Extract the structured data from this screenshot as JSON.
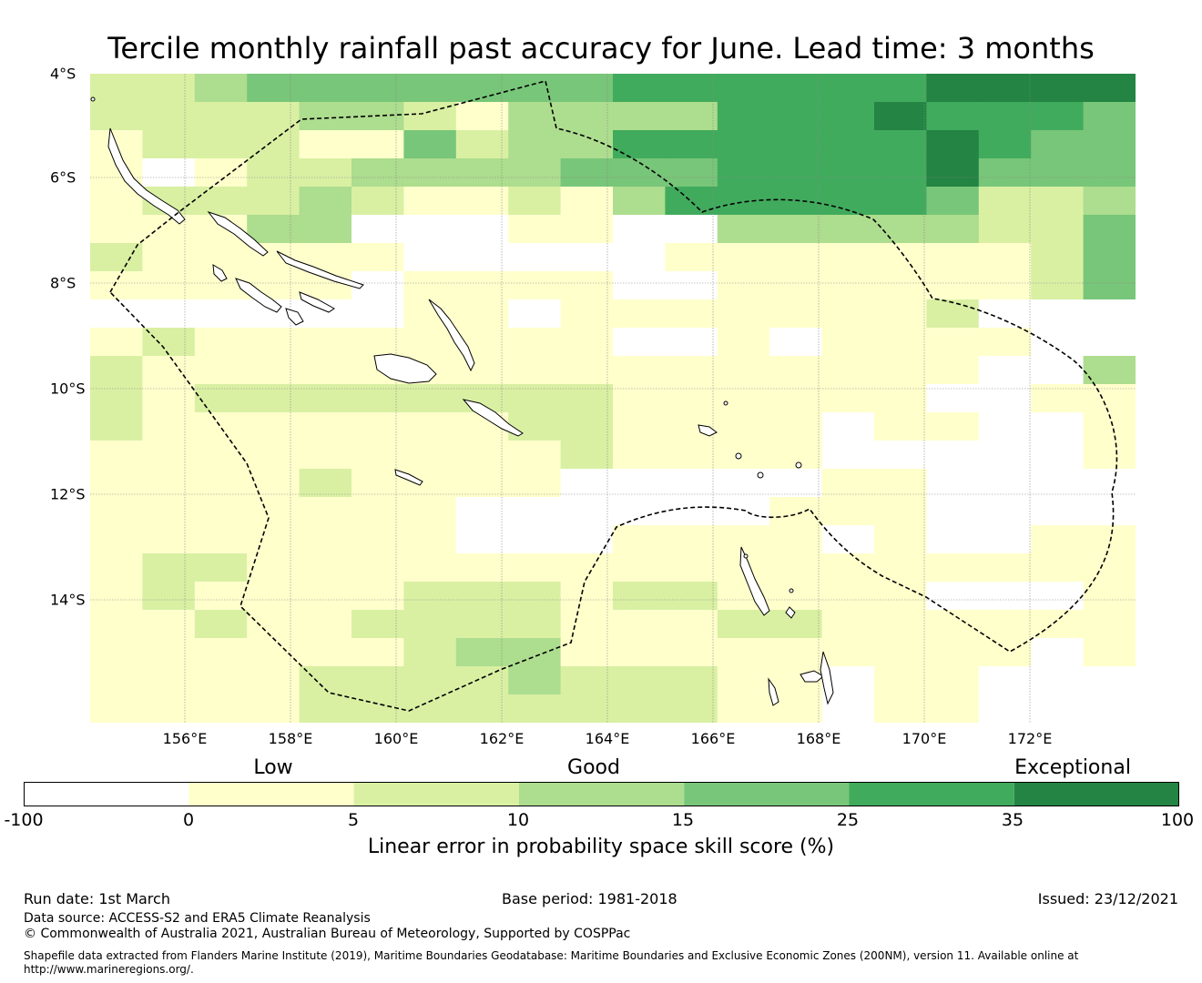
{
  "title": "Tercile monthly rainfall past accuracy for June. Lead time: 3 months",
  "map": {
    "lon_range": [
      154.167,
      173.917
    ],
    "lat_range": [
      -16.333,
      -4.0
    ],
    "lat_labels": [
      "4°S",
      "6°S",
      "8°S",
      "10°S",
      "12°S",
      "14°S"
    ],
    "lat_values": [
      -4,
      -6,
      -8,
      -10,
      -12,
      -14
    ],
    "lon_labels": [
      "156°E",
      "158°E",
      "160°E",
      "162°E",
      "164°E",
      "166°E",
      "168°E",
      "170°E",
      "172°E"
    ],
    "lon_values": [
      156,
      158,
      160,
      162,
      164,
      166,
      168,
      170,
      172
    ],
    "grid_rows": [
      "22344444445555556666",
      "22223321333355565554",
      "12221142335555556544",
      "10122333344455556444",
      "12223211213555554223",
      "11133000110033333224",
      "21111100000111111124",
      "11111011110011111124",
      "00000011011111112000",
      "12111111110010111100",
      "21111111111111111003",
      "21222222221111110011",
      "21111111221111011001",
      "11111111121111000001",
      "11112111100000110000",
      "11111110000001110000",
      "11111110001111010011",
      "12211111111111111111",
      "12111122212211110001",
      "11211222211122111111",
      "11111123311111111101",
      "11112222322211011000",
      "11112222222211011000"
    ],
    "level_colors": [
      "#ffffff",
      "#ffffcc",
      "#d9f0a3",
      "#addd8e",
      "#78c679",
      "#41ab5d",
      "#238443"
    ]
  },
  "colorbar": {
    "categories": [
      "Low",
      "Good",
      "Exceptional"
    ],
    "ticks": [
      "-100",
      "0",
      "5",
      "10",
      "15",
      "25",
      "35",
      "100"
    ],
    "label": "Linear error in probability space skill score (%)"
  },
  "footer": {
    "run_date": "Run date: 1st March",
    "base_period": "Base period: 1981-2018",
    "issued": "Issued: 23/12/2021",
    "data_source": "Data source: ACCESS-S2 and ERA5 Climate Reanalysis",
    "copyright": "© Commonwealth of Australia 2021, Australian Bureau of Meteorology, Supported by COSPPac",
    "shapefile_line1": "Shapefile data extracted from Flanders Marine Institute (2019), Maritime Boundaries Geodatabase: Maritime Boundaries and Exclusive Economic Zones (200NM), version 11. Available online at",
    "shapefile_line2": "http://www.marineregions.org/."
  }
}
